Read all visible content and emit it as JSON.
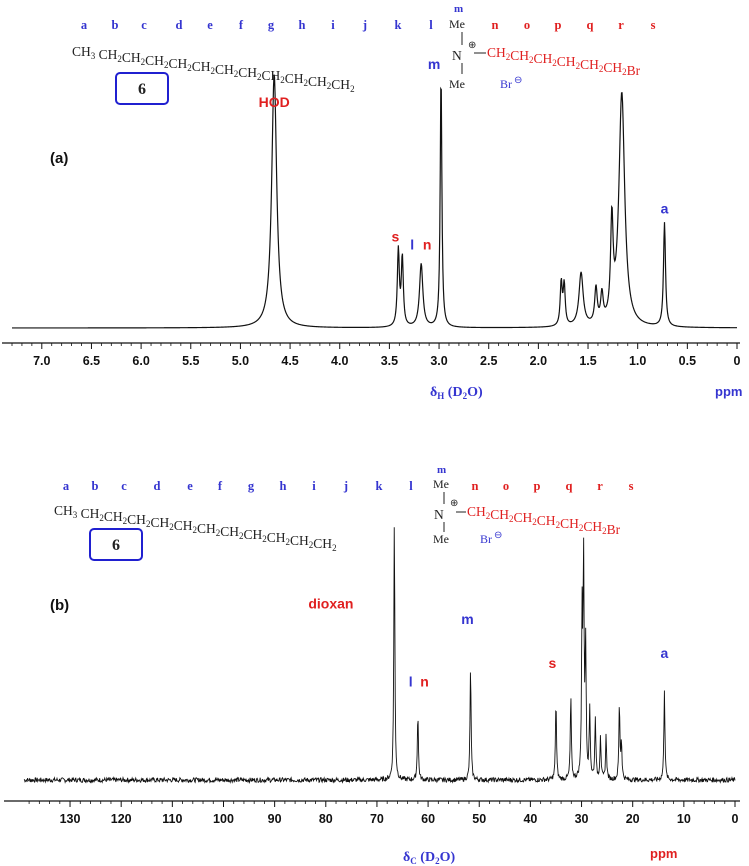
{
  "chart_data": [
    {
      "type": "line",
      "panel_label": "(a)",
      "compound_label": "6",
      "axis_label_main": "δ",
      "axis_label_sub": "H",
      "axis_label_rest": " (D",
      "axis_label_sub2": "2",
      "axis_label_end": "O)",
      "unit_label": "ppm",
      "xlim": [
        7.3,
        0
      ],
      "x_ticks": [
        "7.0",
        "6.5",
        "6.0",
        "5.5",
        "5.0",
        "4.5",
        "4.0",
        "3.5",
        "3.0",
        "2.5",
        "2.0",
        "1.5",
        "1.0",
        "0.5",
        "0"
      ],
      "x_tick_values": [
        7.0,
        6.5,
        6.0,
        5.5,
        5.0,
        4.5,
        4.0,
        3.5,
        3.0,
        2.5,
        2.0,
        1.5,
        1.0,
        0.5,
        0
      ],
      "grid": false,
      "peaks": [
        {
          "x": 4.66,
          "h": 1.0,
          "w": 0.03
        },
        {
          "x": 3.41,
          "h": 0.3,
          "w": 0.012
        },
        {
          "x": 3.37,
          "h": 0.27,
          "w": 0.012
        },
        {
          "x": 3.18,
          "h": 0.25,
          "w": 0.02
        },
        {
          "x": 2.98,
          "h": 1.0,
          "w": 0.01
        },
        {
          "x": 1.77,
          "h": 0.17,
          "w": 0.012
        },
        {
          "x": 1.74,
          "h": 0.16,
          "w": 0.012
        },
        {
          "x": 1.57,
          "h": 0.21,
          "w": 0.025
        },
        {
          "x": 1.42,
          "h": 0.14,
          "w": 0.015
        },
        {
          "x": 1.36,
          "h": 0.11,
          "w": 0.015
        },
        {
          "x": 1.26,
          "h": 0.38,
          "w": 0.015
        },
        {
          "x": 1.16,
          "h": 0.92,
          "w": 0.035
        },
        {
          "x": 0.73,
          "h": 0.41,
          "w": 0.012
        }
      ],
      "annotations": [
        {
          "text": "HOD",
          "x": 4.66,
          "y": 0.87,
          "color": "#e02020"
        },
        {
          "text": "m",
          "x": 3.05,
          "y": 1.02,
          "color": "#3535d0"
        },
        {
          "text": "s",
          "x": 3.44,
          "y": 0.34,
          "color": "#e02020"
        },
        {
          "text": "l",
          "x": 3.27,
          "y": 0.31,
          "color": "#3535d0"
        },
        {
          "text": "n",
          "x": 3.12,
          "y": 0.31,
          "color": "#e02020"
        },
        {
          "text": "a",
          "x": 0.73,
          "y": 0.45,
          "color": "#3535d0"
        }
      ]
    },
    {
      "type": "line",
      "panel_label": "(b)",
      "compound_label": "6",
      "axis_label_main": "δ",
      "axis_label_sub": "C",
      "axis_label_rest": " (D",
      "axis_label_sub2": "2",
      "axis_label_end": "O)",
      "unit_label": "ppm",
      "xlim": [
        139,
        0
      ],
      "x_ticks": [
        "130",
        "120",
        "110",
        "100",
        "90",
        "80",
        "70",
        "60",
        "50",
        "40",
        "30",
        "20",
        "10",
        "0"
      ],
      "x_tick_values": [
        130,
        120,
        110,
        100,
        90,
        80,
        70,
        60,
        50,
        40,
        30,
        20,
        10,
        0
      ],
      "grid": false,
      "peaks": [
        {
          "x": 66.6,
          "h": 1.0
        },
        {
          "x": 62.0,
          "h": 0.26
        },
        {
          "x": 51.7,
          "h": 0.44
        },
        {
          "x": 35.0,
          "h": 0.31
        },
        {
          "x": 32.1,
          "h": 0.32
        },
        {
          "x": 29.9,
          "h": 0.61
        },
        {
          "x": 29.6,
          "h": 0.82
        },
        {
          "x": 29.2,
          "h": 0.5
        },
        {
          "x": 28.4,
          "h": 0.27
        },
        {
          "x": 27.3,
          "h": 0.24
        },
        {
          "x": 26.3,
          "h": 0.17
        },
        {
          "x": 25.2,
          "h": 0.17
        },
        {
          "x": 22.6,
          "h": 0.29
        },
        {
          "x": 22.2,
          "h": 0.14
        },
        {
          "x": 13.8,
          "h": 0.35
        }
      ],
      "annotations": [
        {
          "text": "dioxan",
          "x": 79.0,
          "y": 0.66,
          "color": "#e02020"
        },
        {
          "text": "m",
          "x": 52.3,
          "y": 0.6,
          "color": "#3535d0"
        },
        {
          "text": "l",
          "x": 63.4,
          "y": 0.36,
          "color": "#3535d0"
        },
        {
          "text": "n",
          "x": 60.7,
          "y": 0.36,
          "color": "#e02020"
        },
        {
          "text": "s",
          "x": 35.7,
          "y": 0.43,
          "color": "#e02020"
        },
        {
          "text": "a",
          "x": 13.8,
          "y": 0.47,
          "color": "#3535d0"
        }
      ]
    }
  ],
  "structure": {
    "carbon_letters": [
      "a",
      "b",
      "c",
      "d",
      "e",
      "f",
      "g",
      "h",
      "i",
      "j",
      "k",
      "l"
    ],
    "red_letters": [
      "n",
      "o",
      "p",
      "q",
      "r",
      "s"
    ],
    "methyl_letter": "m",
    "chain_prefix": "CH",
    "chain_sub": "3",
    "chain_repeat": "CH",
    "chain_repeat_sub": "2",
    "methyl": "Me",
    "nitrogen": "N",
    "plus_charge": "⊕",
    "arm_text": "CH",
    "arm_sub": "2",
    "bromine": "Br",
    "counter_ion": "Br",
    "minus_charge": "⊖"
  },
  "colors": {
    "blue": "#3535d0",
    "red": "#e02020",
    "black": "#222222",
    "box": "#2020d0"
  }
}
